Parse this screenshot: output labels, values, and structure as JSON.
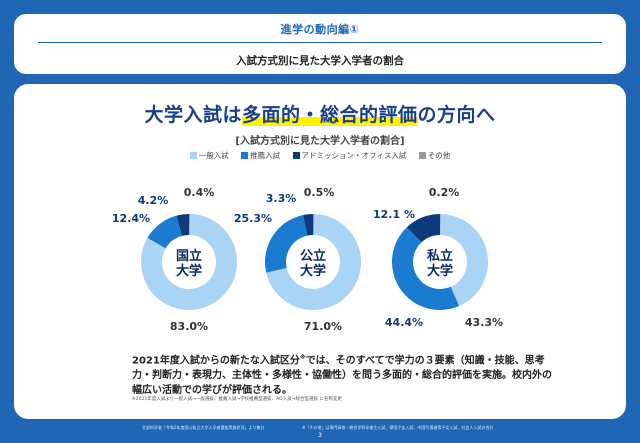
{
  "header": {
    "series_title": "進学の動向編①",
    "subtitle": "入試方式別に見た大学入学者の割合"
  },
  "main": {
    "headline_pre": "大学入試は",
    "headline_highlight": "多面的・総合的評価",
    "headline_post": "の方向へ",
    "chart_title": "[入試方式別に見た大学入学者の割合]",
    "body_line1": "2021年度入試からの新たな入試区分",
    "body_sup": "※",
    "body_rest": "では、そのすべてで学力の３要素（知識・技能、思考力・判断力・表現力、主体性・多様性・協働性）を問う多面的・総合的評価を実施。校内外の幅広い活動での学びが評価される。",
    "footnote": "※2021年度入試より一般入試→一般選抜、推薦入試→学校推薦型選抜、AO入試→総合型選抜 に名称変更"
  },
  "legend": [
    {
      "label": "一般入試",
      "color": "#a9d4f5"
    },
    {
      "label": "推薦入試",
      "color": "#1a7bd0"
    },
    {
      "label": "アドミッション・オフィス入試",
      "color": "#0d3a7a"
    },
    {
      "label": "その他",
      "color": "#9a9a9a"
    }
  ],
  "chart_data": [
    {
      "type": "pie",
      "center_label": [
        "国立",
        "大学"
      ],
      "categories": [
        "一般入試",
        "推薦入試",
        "アドミッション・オフィス入試",
        "その他"
      ],
      "values": [
        83.0,
        12.4,
        4.2,
        0.4
      ],
      "labels": [
        "83.0%",
        "12.4%",
        "4.2%",
        "0.4%"
      ]
    },
    {
      "type": "pie",
      "center_label": [
        "公立",
        "大学"
      ],
      "categories": [
        "一般入試",
        "推薦入試",
        "アドミッション・オフィス入試",
        "その他"
      ],
      "values": [
        71.0,
        25.3,
        3.3,
        0.5
      ],
      "labels": [
        "71.0%",
        "25.3%",
        "3.3%",
        "0.5%"
      ]
    },
    {
      "type": "pie",
      "center_label": [
        "私立",
        "大学"
      ],
      "categories": [
        "一般入試",
        "推薦入試",
        "アドミッション・オフィス入試",
        "その他"
      ],
      "values": [
        43.3,
        44.4,
        12.1,
        0.2
      ],
      "labels": [
        "43.3%",
        "44.4%",
        "12.1 %",
        "0.2%"
      ]
    }
  ],
  "footer": {
    "source_left": "文部科学省「令和2年度国公私立大学入学者選抜実施状況」より集計",
    "source_right": "※「その他」は専門高校・総合学科卒業生入試、帰国子女入試、中国引揚者等子女入試、社会人入試の合計",
    "page_number": "3"
  }
}
